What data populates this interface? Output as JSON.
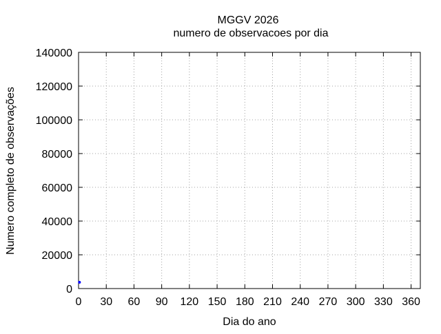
{
  "chart_data": {
    "type": "scatter",
    "title": "MGGV 2026",
    "subtitle": "numero de observacoes por dia",
    "xlabel": "Dia do ano",
    "ylabel": "Numero completo de observações",
    "xlim": [
      0,
      370
    ],
    "ylim": [
      0,
      140000
    ],
    "xticks": [
      0,
      30,
      60,
      90,
      120,
      150,
      180,
      210,
      240,
      270,
      300,
      330,
      360
    ],
    "yticks": [
      0,
      20000,
      40000,
      60000,
      80000,
      100000,
      120000,
      140000
    ],
    "grid": true,
    "series": [
      {
        "color": "#0000ff",
        "points": [
          [
            1,
            3700
          ]
        ]
      }
    ]
  }
}
